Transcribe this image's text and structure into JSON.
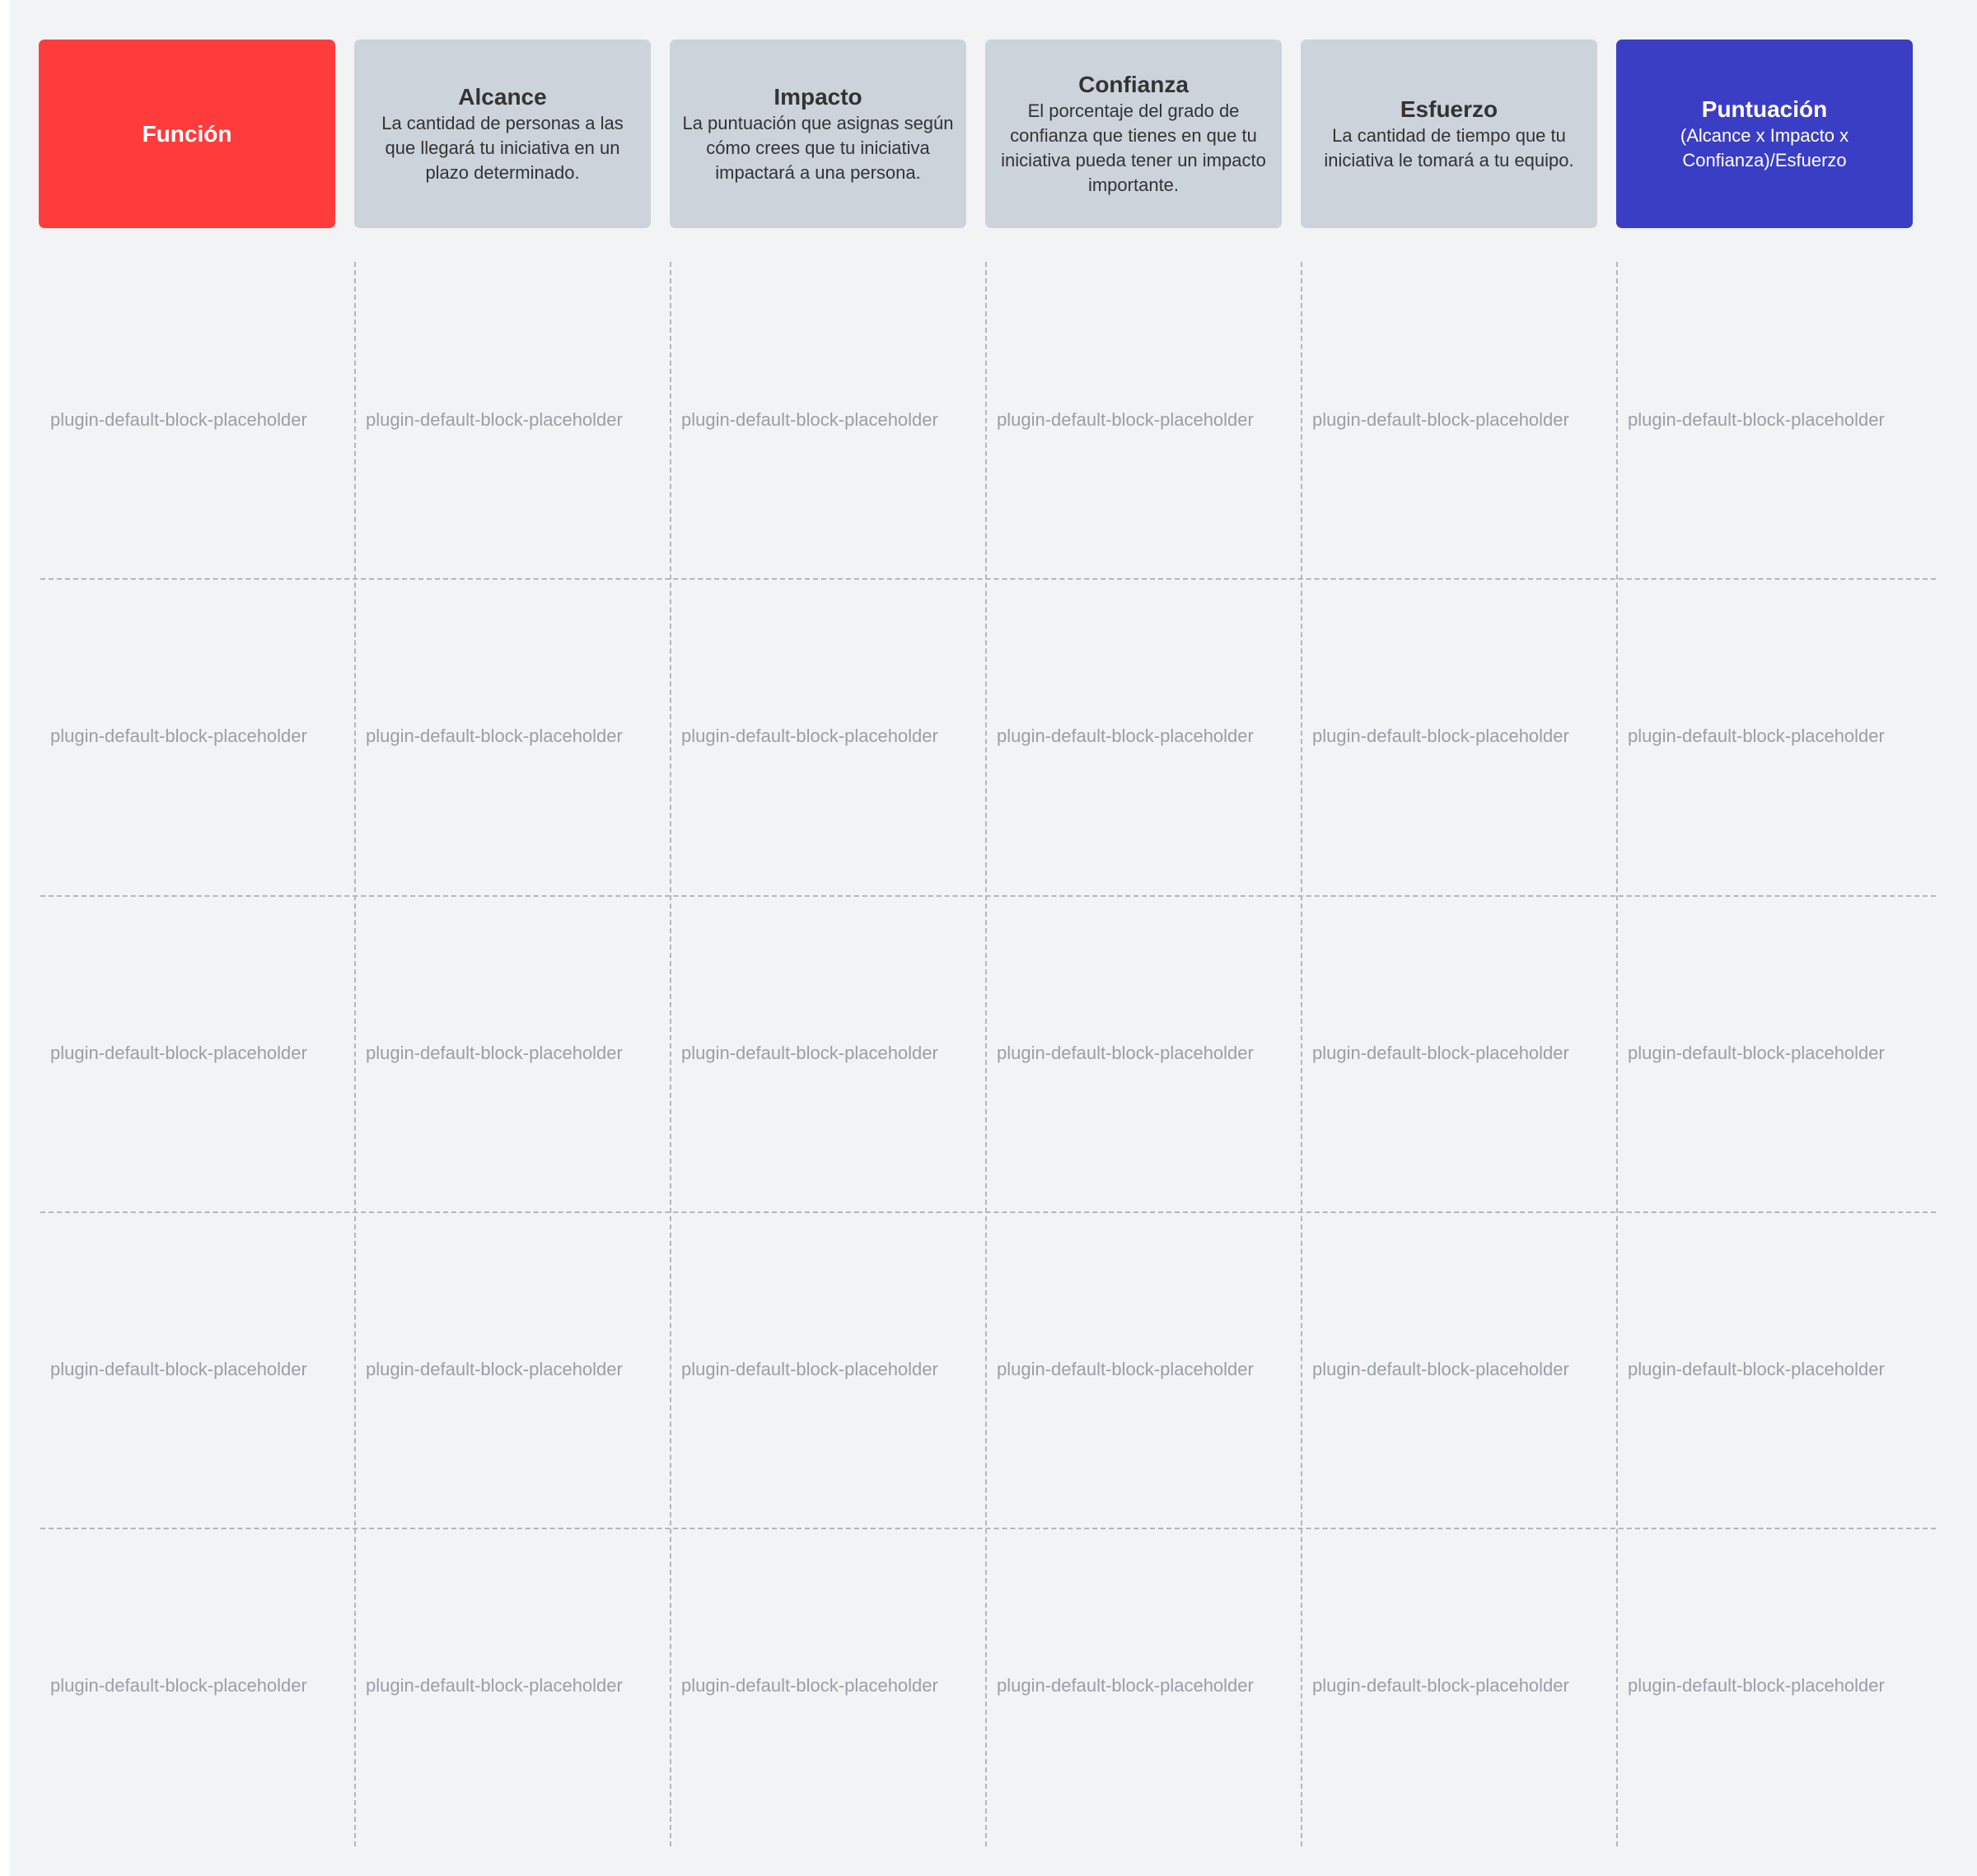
{
  "colors": {
    "funcion": "#ff3c3c",
    "metric": "#cdd3db",
    "puntuacion": "#3a3ec4",
    "background": "#f2f3f5"
  },
  "headers": [
    {
      "title": "Función",
      "desc": ""
    },
    {
      "title": "Alcance",
      "desc": "La cantidad de personas a las que llegará tu iniciativa en un plazo determinado."
    },
    {
      "title": "Impacto",
      "desc": "La puntuación que asignas según cómo crees que tu iniciativa impactará a una persona."
    },
    {
      "title": "Confianza",
      "desc": "El porcentaje del grado de confianza que tienes en que tu iniciativa pueda tener un impacto importante."
    },
    {
      "title": "Esfuerzo",
      "desc": "La cantidad de tiempo que tu iniciativa le tomará a tu equipo."
    },
    {
      "title": "Puntuación",
      "desc": "(Alcance x Impacto x Confianza)/Esfuerzo"
    }
  ],
  "rows": [
    [
      "plugin-default-block-placeholder",
      "plugin-default-block-placeholder",
      "plugin-default-block-placeholder",
      "plugin-default-block-placeholder",
      "plugin-default-block-placeholder",
      "plugin-default-block-placeholder"
    ],
    [
      "plugin-default-block-placeholder",
      "plugin-default-block-placeholder",
      "plugin-default-block-placeholder",
      "plugin-default-block-placeholder",
      "plugin-default-block-placeholder",
      "plugin-default-block-placeholder"
    ],
    [
      "plugin-default-block-placeholder",
      "plugin-default-block-placeholder",
      "plugin-default-block-placeholder",
      "plugin-default-block-placeholder",
      "plugin-default-block-placeholder",
      "plugin-default-block-placeholder"
    ],
    [
      "plugin-default-block-placeholder",
      "plugin-default-block-placeholder",
      "plugin-default-block-placeholder",
      "plugin-default-block-placeholder",
      "plugin-default-block-placeholder",
      "plugin-default-block-placeholder"
    ],
    [
      "plugin-default-block-placeholder",
      "plugin-default-block-placeholder",
      "plugin-default-block-placeholder",
      "plugin-default-block-placeholder",
      "plugin-default-block-placeholder",
      "plugin-default-block-placeholder"
    ]
  ]
}
